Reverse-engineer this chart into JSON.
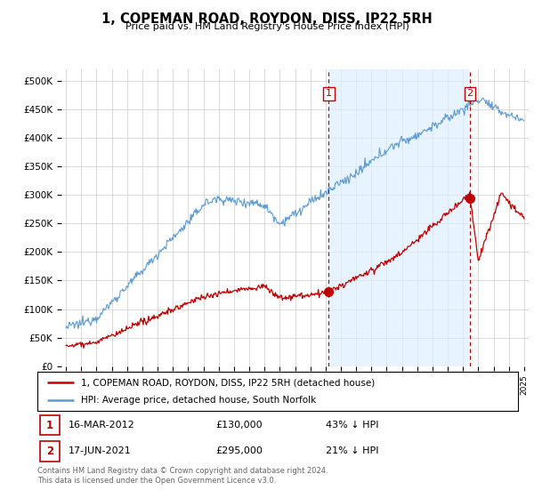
{
  "title": "1, COPEMAN ROAD, ROYDON, DISS, IP22 5RH",
  "subtitle": "Price paid vs. HM Land Registry's House Price Index (HPI)",
  "yticks": [
    0,
    50000,
    100000,
    150000,
    200000,
    250000,
    300000,
    350000,
    400000,
    450000,
    500000
  ],
  "ytick_labels": [
    "£0",
    "£50K",
    "£100K",
    "£150K",
    "£200K",
    "£250K",
    "£300K",
    "£350K",
    "£400K",
    "£450K",
    "£500K"
  ],
  "xlim_start": 1994.7,
  "xlim_end": 2025.3,
  "ylim": [
    0,
    520000
  ],
  "hpi_color": "#5B9BD5",
  "hpi_fill_color": "#DDEEFF",
  "sale_color": "#C00000",
  "marker1_x": 2012.2,
  "marker1_y": 130000,
  "marker1_label": "1",
  "marker2_x": 2021.45,
  "marker2_y": 295000,
  "marker2_label": "2",
  "legend_line1": "1, COPEMAN ROAD, ROYDON, DISS, IP22 5RH (detached house)",
  "legend_line2": "HPI: Average price, detached house, South Norfolk",
  "footnote": "Contains HM Land Registry data © Crown copyright and database right 2024.\nThis data is licensed under the Open Government Licence v3.0.",
  "background_color": "#ffffff",
  "grid_color": "#cccccc",
  "xtick_years": [
    1995,
    1996,
    1997,
    1998,
    1999,
    2000,
    2001,
    2002,
    2003,
    2004,
    2005,
    2006,
    2007,
    2008,
    2009,
    2010,
    2011,
    2012,
    2013,
    2014,
    2015,
    2016,
    2017,
    2018,
    2019,
    2020,
    2021,
    2022,
    2023,
    2024,
    2025
  ]
}
